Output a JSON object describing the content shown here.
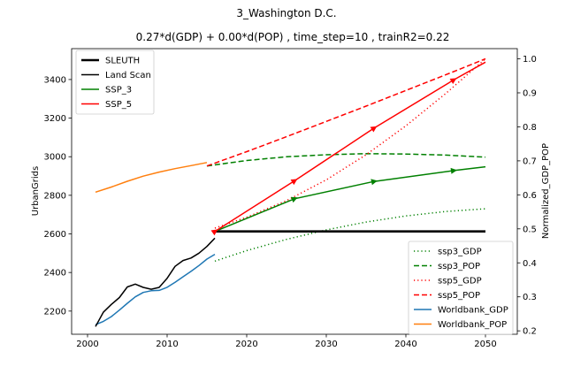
{
  "chart_data": {
    "type": "line",
    "title": "3_Washington D.C.",
    "subtitle": "0.27*d(GDP) + 0.00*d(POP) , time_step=10 , trainR2=0.22",
    "xlabel": "",
    "ylabel_left": "UrbanGrids",
    "ylabel_right": "Normalized_GDP_POP",
    "xlim": [
      1998,
      2054
    ],
    "ylim_left": [
      2080,
      3560
    ],
    "ylim_right": [
      0.19,
      1.03
    ],
    "x_ticks": [
      2000,
      2010,
      2020,
      2030,
      2040,
      2050
    ],
    "y_ticks_left": [
      2200,
      2400,
      2600,
      2800,
      3000,
      3200,
      3400
    ],
    "y_ticks_right": [
      0.2,
      0.3,
      0.4,
      0.5,
      0.6,
      0.7,
      0.8,
      0.9,
      1.0
    ],
    "legend_left": {
      "placement": "upper-left",
      "entries": [
        {
          "name": "SLEUTH",
          "color": "#000000",
          "style": "solid-thick"
        },
        {
          "name": "Land Scan",
          "color": "#000000",
          "style": "solid"
        },
        {
          "name": "SSP_3",
          "color": "#008000",
          "style": "solid"
        },
        {
          "name": "SSP_5",
          "color": "#ff0000",
          "style": "solid"
        }
      ]
    },
    "legend_right": {
      "placement": "lower-right",
      "entries": [
        {
          "name": "ssp3_GDP",
          "color": "#008000",
          "style": "dotted"
        },
        {
          "name": "ssp3_POP",
          "color": "#008000",
          "style": "dashed"
        },
        {
          "name": "ssp5_GDP",
          "color": "#ff0000",
          "style": "dotted"
        },
        {
          "name": "ssp5_POP",
          "color": "#ff0000",
          "style": "dashed"
        },
        {
          "name": "Worldbank_GDP",
          "color": "#1f77b4",
          "style": "solid"
        },
        {
          "name": "Worldbank_POP",
          "color": "#ff7f0e",
          "style": "solid"
        }
      ]
    },
    "series_left_axis": [
      {
        "name": "SLEUTH",
        "color": "#000000",
        "style": "solid-thick",
        "x": [
          2016,
          2050
        ],
        "y": [
          2613,
          2613
        ]
      },
      {
        "name": "Land Scan",
        "color": "#000000",
        "style": "solid",
        "x": [
          2001,
          2002,
          2003,
          2004,
          2005,
          2006,
          2007,
          2008,
          2009,
          2010,
          2011,
          2012,
          2013,
          2014,
          2015,
          2016
        ],
        "y": [
          2120,
          2195,
          2235,
          2270,
          2325,
          2340,
          2323,
          2313,
          2323,
          2370,
          2432,
          2462,
          2475,
          2500,
          2535,
          2578
        ]
      },
      {
        "name": "SSP_3",
        "color": "#008000",
        "style": "solid",
        "x": [
          2016,
          2026,
          2036,
          2046,
          2050
        ],
        "y": [
          2613,
          2782,
          2872,
          2928,
          2948
        ]
      },
      {
        "name": "SSP_5",
        "color": "#ff0000",
        "style": "solid",
        "x": [
          2016,
          2026,
          2036,
          2046,
          2050
        ],
        "y": [
          2613,
          2875,
          3148,
          3398,
          3490
        ]
      }
    ],
    "series_right_axis": [
      {
        "name": "ssp3_GDP",
        "color": "#008000",
        "style": "dotted",
        "x": [
          2016,
          2020,
          2025,
          2030,
          2035,
          2040,
          2045,
          2050
        ],
        "y": [
          0.405,
          0.436,
          0.469,
          0.497,
          0.52,
          0.538,
          0.551,
          0.559
        ]
      },
      {
        "name": "ssp3_POP",
        "color": "#008000",
        "style": "dashed",
        "x": [
          2015,
          2020,
          2025,
          2030,
          2035,
          2040,
          2045,
          2050
        ],
        "y": [
          0.685,
          0.701,
          0.712,
          0.718,
          0.721,
          0.72,
          0.717,
          0.711
        ]
      },
      {
        "name": "ssp5_GDP",
        "color": "#ff0000",
        "style": "dotted",
        "x": [
          2016,
          2020,
          2025,
          2030,
          2035,
          2040,
          2045,
          2050
        ],
        "y": [
          0.502,
          0.534,
          0.583,
          0.644,
          0.718,
          0.803,
          0.898,
          1.0
        ]
      },
      {
        "name": "ssp5_POP",
        "color": "#ff0000",
        "style": "dashed",
        "x": [
          2015,
          2020,
          2025,
          2030,
          2035,
          2040,
          2045,
          2050
        ],
        "y": [
          0.685,
          0.727,
          0.771,
          0.816,
          0.861,
          0.907,
          0.953,
          1.0
        ]
      },
      {
        "name": "Worldbank_GDP",
        "color": "#1f77b4",
        "style": "solid",
        "x": [
          2001,
          2002,
          2003,
          2004,
          2005,
          2006,
          2007,
          2008,
          2009,
          2010,
          2011,
          2012,
          2013,
          2014,
          2015,
          2016
        ],
        "y": [
          0.218,
          0.228,
          0.242,
          0.261,
          0.281,
          0.3,
          0.313,
          0.318,
          0.319,
          0.328,
          0.343,
          0.359,
          0.375,
          0.392,
          0.411,
          0.425
        ]
      },
      {
        "name": "Worldbank_POP",
        "color": "#ff7f0e",
        "style": "solid",
        "x": [
          2001,
          2003,
          2005,
          2007,
          2009,
          2011,
          2013,
          2015
        ],
        "y": [
          0.608,
          0.623,
          0.64,
          0.655,
          0.667,
          0.677,
          0.686,
          0.695
        ]
      }
    ],
    "arrow_markers": [
      {
        "series": "SSP_3",
        "x": [
          2026,
          2036,
          2046
        ]
      },
      {
        "series": "SSP_5",
        "x": [
          2026,
          2036,
          2046
        ]
      }
    ],
    "grid": false
  }
}
